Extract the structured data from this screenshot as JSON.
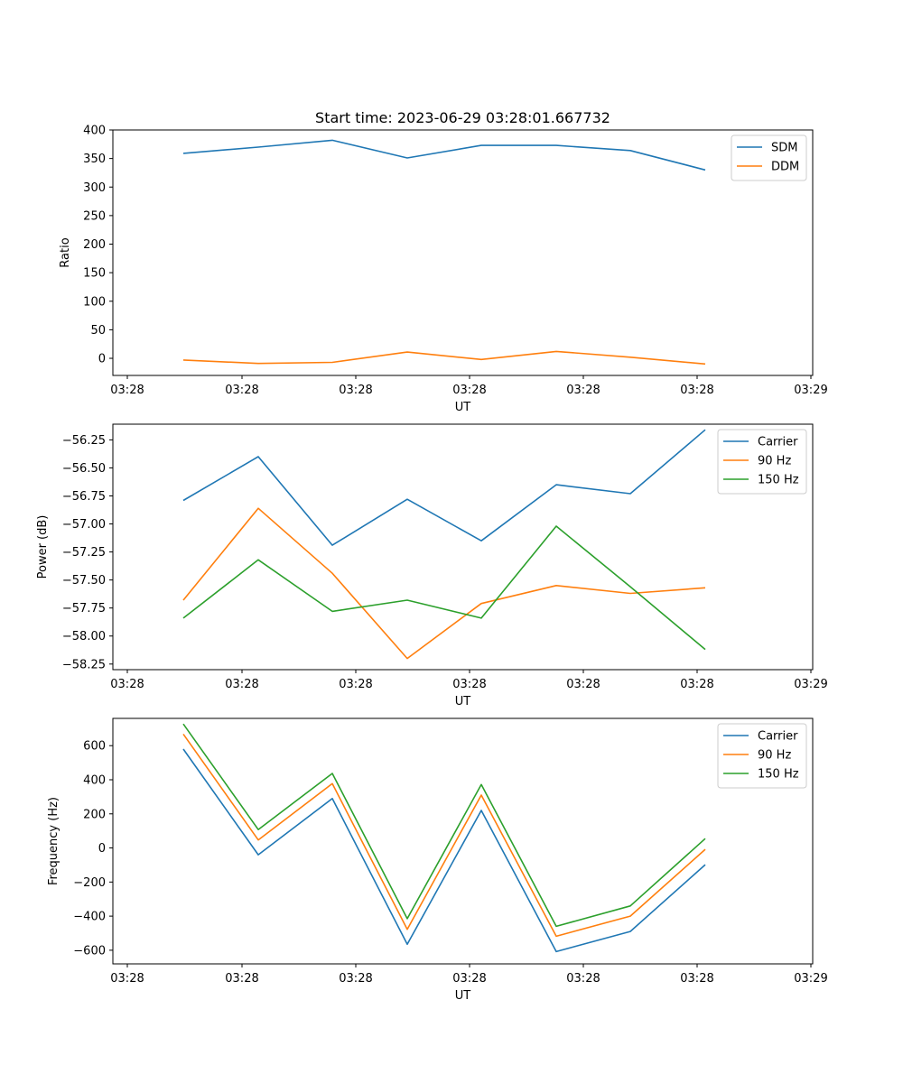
{
  "chart_data": [
    {
      "type": "line",
      "title": "Start time: 2023-06-29 03:28:01.667732",
      "xlabel": "UT",
      "ylabel": "Ratio",
      "x_tick_labels": [
        "03:28",
        "03:28",
        "03:28",
        "03:28",
        "03:28",
        "03:28",
        "03:29"
      ],
      "y_ticks": [
        0,
        50,
        100,
        150,
        200,
        250,
        300,
        350,
        400
      ],
      "y_tick_labels": [
        "0",
        "50",
        "100",
        "150",
        "200",
        "250",
        "300",
        "350",
        "400"
      ],
      "ylim": [
        -30,
        400
      ],
      "legend_position": "top-right",
      "series": [
        {
          "name": "SDM",
          "color": "#1f77b4",
          "values": [
            359,
            370,
            382,
            351,
            373,
            373,
            364,
            330
          ]
        },
        {
          "name": "DDM",
          "color": "#ff7f0e",
          "values": [
            -3,
            -9,
            -7,
            11,
            -2,
            12,
            2,
            -10
          ]
        }
      ]
    },
    {
      "type": "line",
      "xlabel": "UT",
      "ylabel": "Power (dB)",
      "x_tick_labels": [
        "03:28",
        "03:28",
        "03:28",
        "03:28",
        "03:28",
        "03:28",
        "03:29"
      ],
      "y_ticks": [
        -58.25,
        -58.0,
        -57.75,
        -57.5,
        -57.25,
        -57.0,
        -56.75,
        -56.5,
        -56.25
      ],
      "y_tick_labels": [
        "−58.25",
        "−58.00",
        "−57.75",
        "−57.50",
        "−57.25",
        "−57.00",
        "−56.75",
        "−56.50",
        "−56.25"
      ],
      "ylim": [
        -58.3,
        -56.11
      ],
      "legend_position": "top-right",
      "series": [
        {
          "name": "Carrier",
          "color": "#1f77b4",
          "values": [
            -56.79,
            -56.4,
            -57.19,
            -56.78,
            -57.15,
            -56.65,
            -56.73,
            -56.16
          ]
        },
        {
          "name": "90 Hz",
          "color": "#ff7f0e",
          "values": [
            -57.68,
            -56.86,
            -57.44,
            -58.2,
            -57.71,
            -57.55,
            -57.62,
            -57.57
          ]
        },
        {
          "name": "150 Hz",
          "color": "#2ca02c",
          "values": [
            -57.84,
            -57.32,
            -57.78,
            -57.68,
            -57.84,
            -57.02,
            -57.56,
            -58.12
          ]
        }
      ]
    },
    {
      "type": "line",
      "xlabel": "UT",
      "ylabel": "Frequency (Hz)",
      "x_tick_labels": [
        "03:28",
        "03:28",
        "03:28",
        "03:28",
        "03:28",
        "03:28",
        "03:29"
      ],
      "y_ticks": [
        -600,
        -400,
        -200,
        0,
        200,
        400,
        600
      ],
      "y_tick_labels": [
        "−600",
        "−400",
        "−200",
        "0",
        "200",
        "400",
        "600"
      ],
      "ylim": [
        -680,
        760
      ],
      "legend_position": "top-right",
      "series": [
        {
          "name": "Carrier",
          "color": "#1f77b4",
          "values": [
            580,
            -40,
            290,
            -565,
            220,
            -608,
            -490,
            -98
          ]
        },
        {
          "name": "90 Hz",
          "color": "#ff7f0e",
          "values": [
            668,
            47,
            377,
            -477,
            310,
            -518,
            -400,
            -8
          ]
        },
        {
          "name": "150 Hz",
          "color": "#2ca02c",
          "values": [
            727,
            108,
            437,
            -415,
            372,
            -460,
            -340,
            55
          ]
        }
      ]
    }
  ]
}
